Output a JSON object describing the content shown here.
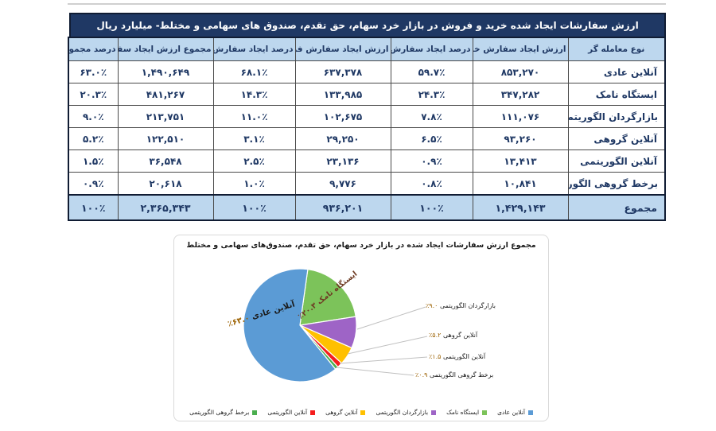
{
  "colors": {
    "table_title_bg": "#1F3864",
    "table_header_bg": "#BDD7EE",
    "table_text": "#1F3864",
    "leader_line": "#C0C0C0"
  },
  "table": {
    "title": "ارزش سفارشات ایجاد شده خرید و فروش در بازار خرد سهام، حق تقدم، صندوق های سهامی و مختلط- میلیارد ریال",
    "columns": [
      "نوع معامله گر",
      "ارزش ایجاد سفارش خرید",
      "درصد ایجاد سفارش خرید",
      "ارزش ایجاد سفارش فروش",
      "درصد ایجاد سفارش فروش",
      "مجموع ارزش ایجاد سفارش",
      "درصد مجموع"
    ],
    "rows": [
      [
        "آنلاین عادی",
        "۸۵۳,۲۷۰",
        "۵۹.۷٪",
        "۶۳۷,۳۷۸",
        "۶۸.۱٪",
        "۱,۴۹۰,۶۴۹",
        "۶۳.۰٪"
      ],
      [
        "ایستگاه نامک",
        "۳۴۷,۲۸۲",
        "۲۴.۳٪",
        "۱۳۳,۹۸۵",
        "۱۴.۳٪",
        "۴۸۱,۲۶۷",
        "۲۰.۳٪"
      ],
      [
        "بازارگردان الگوریتمی",
        "۱۱۱,۰۷۶",
        "۷.۸٪",
        "۱۰۲,۶۷۵",
        "۱۱.۰٪",
        "۲۱۳,۷۵۱",
        "۹.۰٪"
      ],
      [
        "آنلاین گروهی",
        "۹۳,۲۶۰",
        "۶.۵٪",
        "۲۹,۲۵۰",
        "۳.۱٪",
        "۱۲۲,۵۱۰",
        "۵.۲٪"
      ],
      [
        "آنلاین الگوریتمی",
        "۱۳,۴۱۳",
        "۰.۹٪",
        "۲۳,۱۳۶",
        "۲.۵٪",
        "۳۶,۵۴۸",
        "۱.۵٪"
      ],
      [
        "برخط گروهی الگوریتمی",
        "۱۰,۸۴۱",
        "۰.۸٪",
        "۹,۷۷۶",
        "۱.۰٪",
        "۲۰,۶۱۸",
        "۰.۹٪"
      ]
    ],
    "total_row": [
      "مجموع",
      "۱,۴۲۹,۱۴۳",
      "۱۰۰٪",
      "۹۳۶,۲۰۱",
      "۱۰۰٪",
      "۲,۳۶۵,۳۴۳",
      "۱۰۰٪"
    ]
  },
  "chart_data": {
    "type": "pie",
    "title": "مجموع ارزش سفارشات ایجاد شده در بازار خرد سهام، حق تقدم، صندوق‌های سهامی و مختلط",
    "legend_position": "bottom",
    "start_angle_deg": 8,
    "slices": [
      {
        "name": "آنلاین عادی",
        "value": 63.0,
        "pct_label": "٪۶۳.۰",
        "color": "#5B9BD5"
      },
      {
        "name": "ایستگاه نامک",
        "value": 20.3,
        "pct_label": "٪۲۰.۳",
        "color": "#7CC35A"
      },
      {
        "name": "بازارگردان الگوریتمی",
        "value": 9.0,
        "pct_label": "٪۹.۰",
        "color": "#9E64C6"
      },
      {
        "name": "آنلاین گروهی",
        "value": 5.2,
        "pct_label": "٪۵.۲",
        "color": "#FFC000"
      },
      {
        "name": "آنلاین الگوریتمی",
        "value": 1.5,
        "pct_label": "٪۱.۵",
        "color": "#F51D1D"
      },
      {
        "name": "برخط گروهی الگوریتمی",
        "value": 0.9,
        "pct_label": "٪۰.۹",
        "color": "#4BAE4F"
      }
    ]
  }
}
